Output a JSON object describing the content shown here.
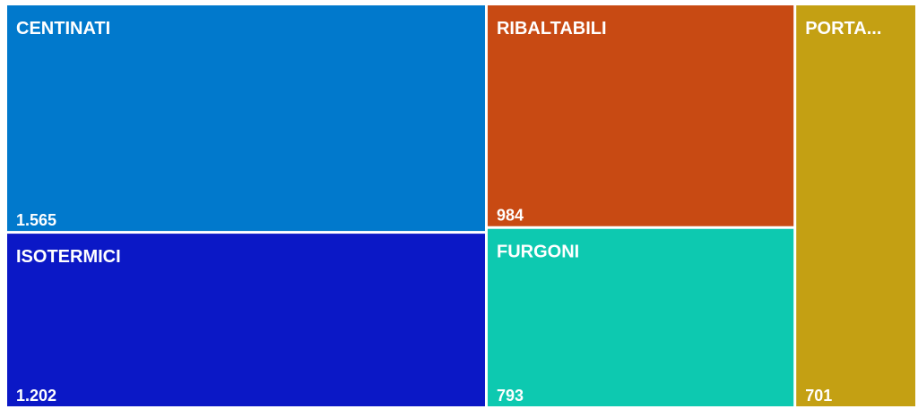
{
  "chart_data": {
    "type": "treemap",
    "categories": [
      "CENTINATI",
      "ISOTERMICI",
      "RIBALTABILI",
      "FURGONI",
      "PORTA..."
    ],
    "values": [
      1565,
      1202,
      984,
      793,
      701
    ],
    "value_labels": [
      "1.565",
      "1.202",
      "984",
      "793",
      "701"
    ],
    "colors": [
      "#0179cc",
      "#0b18c6",
      "#c84a13",
      "#0dc9b0",
      "#c4a013"
    ]
  }
}
